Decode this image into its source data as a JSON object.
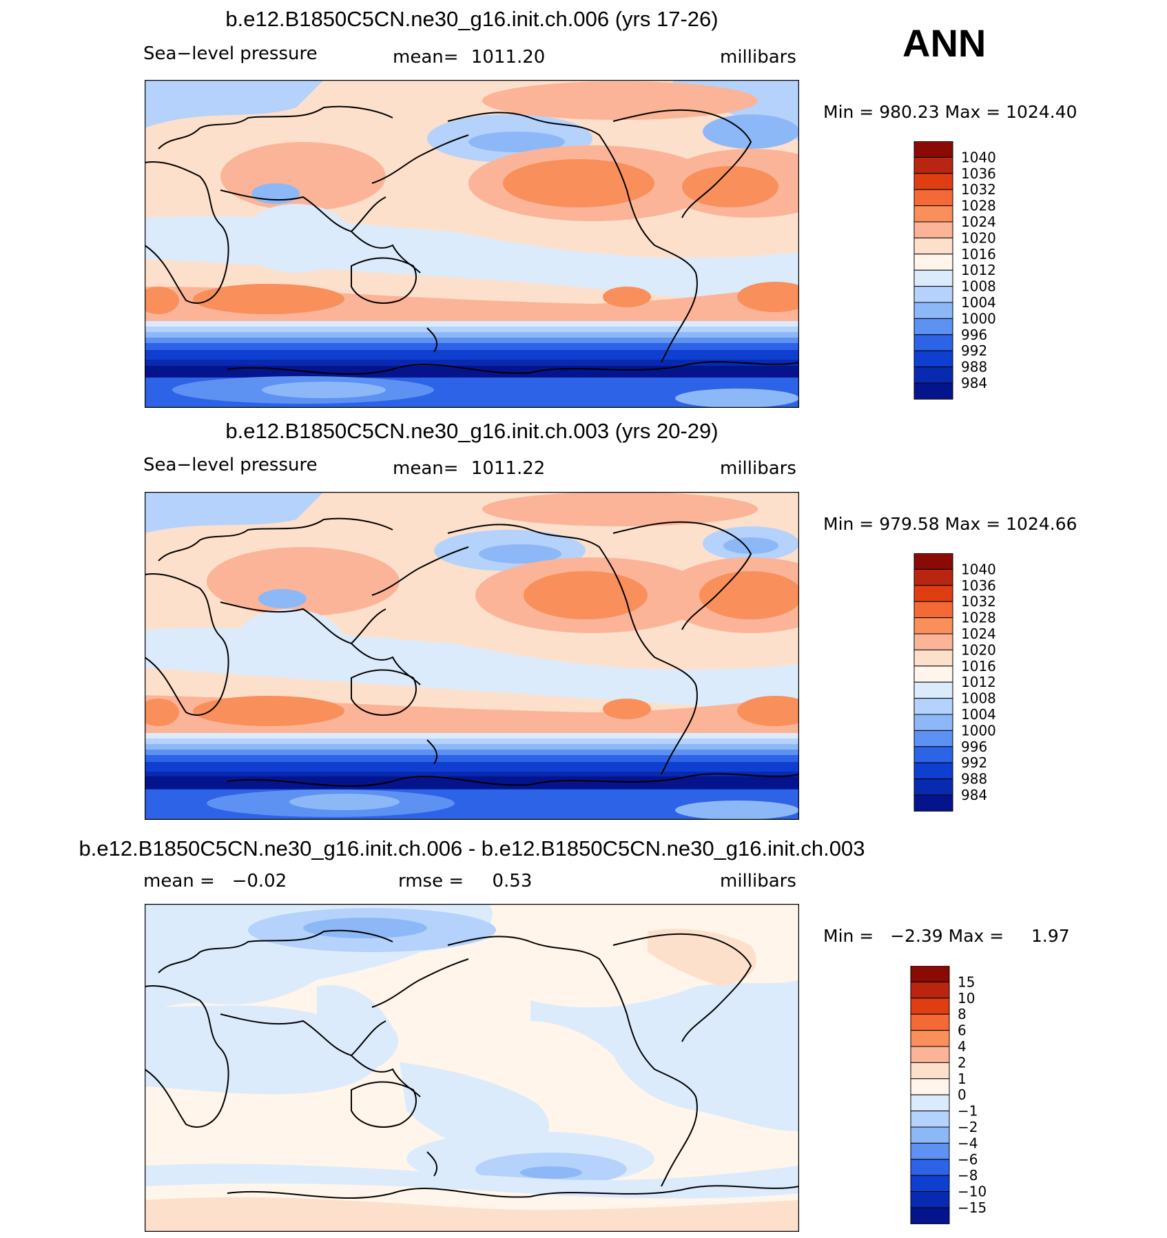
{
  "season": "ANN",
  "panels": [
    {
      "title": "b.e12.B1850C5CN.ne30_g16.init.ch.006 (yrs 17-26)",
      "field_label": "Sea−level pressure",
      "stat_label": "mean=",
      "stat_value": "1011.20",
      "units": "millibars",
      "min_max_text": "Min = 980.23 Max = 1024.40",
      "colorbar_labels": [
        "1040",
        "1036",
        "1032",
        "1028",
        "1024",
        "1020",
        "1016",
        "1012",
        "1008",
        "1004",
        "1000",
        "996",
        "992",
        "988",
        "984"
      ]
    },
    {
      "title": "b.e12.B1850C5CN.ne30_g16.init.ch.003 (yrs 20-29)",
      "field_label": "Sea−level pressure",
      "stat_label": "mean=",
      "stat_value": "1011.22",
      "units": "millibars",
      "min_max_text": "Min = 979.58 Max = 1024.66",
      "colorbar_labels": [
        "1040",
        "1036",
        "1032",
        "1028",
        "1024",
        "1020",
        "1016",
        "1012",
        "1008",
        "1004",
        "1000",
        "996",
        "992",
        "988",
        "984"
      ]
    },
    {
      "title": "b.e12.B1850C5CN.ne30_g16.init.ch.006 - b.e12.B1850C5CN.ne30_g16.init.ch.003",
      "mean_text": "mean =   −0.02",
      "rmse_text": "rmse =     0.53",
      "units": "millibars",
      "min_max_text": "Min =   −2.39 Max =     1.97",
      "colorbar_labels": [
        "15",
        "10",
        "8",
        "6",
        "4",
        "2",
        "1",
        "0",
        "−1",
        "−2",
        "−4",
        "−6",
        "−8",
        "−10",
        "−15"
      ]
    }
  ],
  "palette": {
    "colorbar_colors": [
      "#8a0a05",
      "#b82510",
      "#de3e12",
      "#f46a36",
      "#f98f5b",
      "#fbb497",
      "#fde0cb",
      "#fff5ea",
      "#dcebfb",
      "#b4d2fb",
      "#8db8f8",
      "#5d91f2",
      "#2d63e6",
      "#0f3fd0",
      "#082ab0",
      "#04148c"
    ],
    "ocean_neutral": "#dcebfb",
    "land_warm": "#fde0cb"
  }
}
